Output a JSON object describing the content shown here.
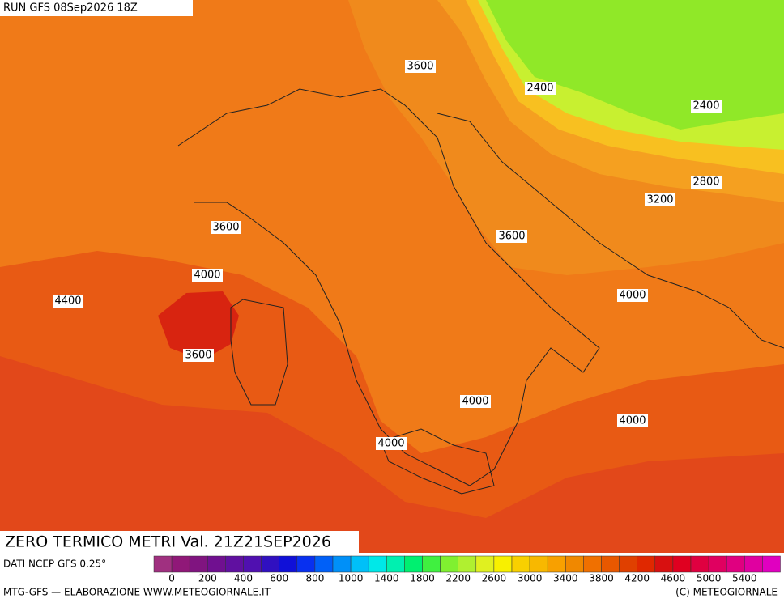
{
  "header": {
    "run": "RUN GFS 08Sep2026 18Z"
  },
  "contour_labels": [
    "3600",
    "2400",
    "2400",
    "2800",
    "3200",
    "3600",
    "3600",
    "4000",
    "4000",
    "4400",
    "3600",
    "4000",
    "4000",
    "4000"
  ],
  "footer": {
    "title": "ZERO TERMICO METRI Val. 21Z21SEP2026",
    "source": "DATI NCEP GFS 0.25°",
    "credit": "MTG-GFS — ELABORAZIONE WWW.METEOGIORNALE.IT",
    "copyright": "(C) METEOGIORNALE"
  },
  "legend": {
    "labels": [
      0,
      200,
      400,
      600,
      800,
      1000,
      1400,
      1800,
      2200,
      2600,
      3000,
      3400,
      3800,
      4200,
      4600,
      5000,
      5400
    ],
    "colors": [
      "#a03080",
      "#901878",
      "#801480",
      "#701090",
      "#6010a0",
      "#5010b0",
      "#3010c0",
      "#1010d8",
      "#0830f0",
      "#0060f8",
      "#0090f8",
      "#00c0f8",
      "#00e8e8",
      "#00f0b0",
      "#00f070",
      "#40f040",
      "#80f030",
      "#b0f030",
      "#e0f020",
      "#f8f000",
      "#f8d000",
      "#f8b800",
      "#f8a000",
      "#f08800",
      "#f07000",
      "#e85800",
      "#e04000",
      "#e02800",
      "#d81010",
      "#e00020",
      "#e00040",
      "#e00060",
      "#e00080",
      "#e000a0",
      "#e000c0"
    ]
  }
}
